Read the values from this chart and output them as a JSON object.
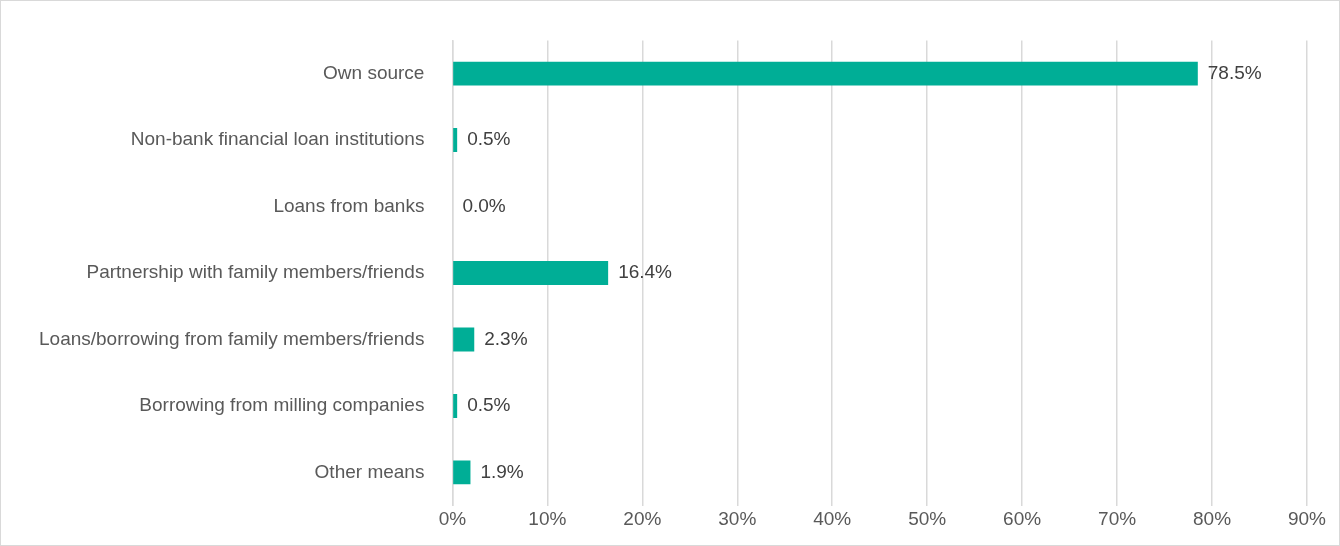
{
  "chart_data": {
    "type": "bar",
    "orientation": "horizontal",
    "categories": [
      "Own source",
      "Non-bank financial loan institutions",
      "Loans from banks",
      "Partnership with family members/friends",
      "Loans/borrowing from family members/friends",
      "Borrowing from milling companies",
      "Other means"
    ],
    "values": [
      78.5,
      0.5,
      0.0,
      16.4,
      2.3,
      0.5,
      1.9
    ],
    "value_labels": [
      "78.5%",
      "0.5%",
      "0.0%",
      "16.4%",
      "2.3%",
      "0.5%",
      "1.9%"
    ],
    "color": "#00ae96",
    "xlim": [
      0,
      90
    ],
    "xticks": [
      {
        "value": 0,
        "label": "0%"
      },
      {
        "value": 10,
        "label": "10%"
      },
      {
        "value": 20,
        "label": "20%"
      },
      {
        "value": 30,
        "label": "30%"
      },
      {
        "value": 40,
        "label": "40%"
      },
      {
        "value": 50,
        "label": "50%"
      },
      {
        "value": 60,
        "label": "60%"
      },
      {
        "value": 70,
        "label": "70%"
      },
      {
        "value": 80,
        "label": "80%"
      },
      {
        "value": 90,
        "label": "90%"
      }
    ],
    "grid": "x",
    "legend": false
  }
}
